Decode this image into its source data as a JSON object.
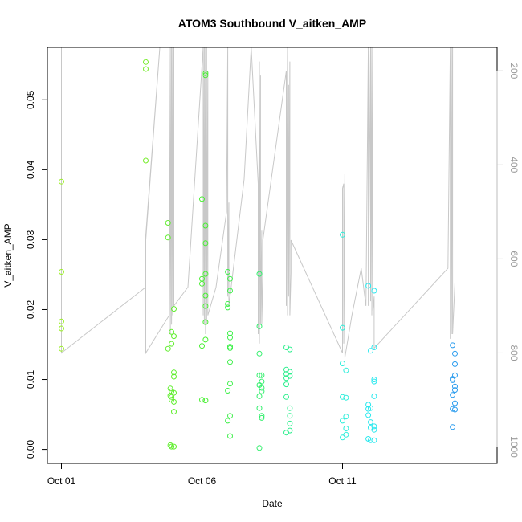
{
  "chart_data": {
    "type": "scatter",
    "title": "ATOM3 Southbound V_aitken_AMP",
    "xlabel": "Date",
    "ylabel": "V_aitken_AMP",
    "x_axis": {
      "type": "date",
      "range": [
        "2016-09-30T12:00",
        "2016-10-16T12:00"
      ],
      "ticks": [
        "2016-10-01",
        "2016-10-06",
        "2016-10-11"
      ],
      "tick_labels": [
        "Oct 01",
        "Oct 06",
        "Oct 11"
      ]
    },
    "y_axis": {
      "range": [
        -0.002,
        0.0575
      ],
      "ticks": [
        0.0,
        0.01,
        0.02,
        0.03,
        0.04,
        0.05
      ],
      "tick_labels": [
        "0.00",
        "0.01",
        "0.02",
        "0.03",
        "0.04",
        "0.05"
      ]
    },
    "y2_axis": {
      "reversed": true,
      "range": [
        1035,
        150
      ],
      "ticks": [
        200,
        400,
        600,
        800,
        1000
      ],
      "tick_labels": [
        "200",
        "400",
        "600",
        "800",
        "1000"
      ],
      "color": "#bebebe"
    },
    "points": [
      {
        "x": "2016-10-01T00:00",
        "y": 0.0383,
        "color": "#9cf02a"
      },
      {
        "x": "2016-10-01T00:00",
        "y": 0.0254,
        "color": "#9cf02a"
      },
      {
        "x": "2016-10-01T00:00",
        "y": 0.0183,
        "color": "#9cf02a"
      },
      {
        "x": "2016-10-01T00:00",
        "y": 0.0173,
        "color": "#9cf02a"
      },
      {
        "x": "2016-10-01T00:00",
        "y": 0.0144,
        "color": "#9cf02a"
      },
      {
        "x": "2016-10-04T00:00",
        "y": 0.0554,
        "color": "#76ec2a"
      },
      {
        "x": "2016-10-04T00:00",
        "y": 0.0544,
        "color": "#76ec2a"
      },
      {
        "x": "2016-10-04T00:00",
        "y": 0.0413,
        "color": "#76ec2a"
      },
      {
        "x": "2016-10-04T19:00",
        "y": 0.0324,
        "color": "#60ee2e"
      },
      {
        "x": "2016-10-04T19:00",
        "y": 0.0303,
        "color": "#60ee2e"
      },
      {
        "x": "2016-10-04T19:00",
        "y": 0.0144,
        "color": "#60ee2e"
      },
      {
        "x": "2016-10-04T21:00",
        "y": 0.0087,
        "color": "#60ee2e"
      },
      {
        "x": "2016-10-04T21:00",
        "y": 0.0077,
        "color": "#60ee2e"
      },
      {
        "x": "2016-10-04T21:00",
        "y": 0.0006,
        "color": "#60ee2e"
      },
      {
        "x": "2016-10-04T22:00",
        "y": 0.0168,
        "color": "#60ee2e"
      },
      {
        "x": "2016-10-04T22:00",
        "y": 0.0151,
        "color": "#60ee2e"
      },
      {
        "x": "2016-10-04T22:00",
        "y": 0.0083,
        "color": "#60ee2e"
      },
      {
        "x": "2016-10-04T22:00",
        "y": 0.0075,
        "color": "#60ee2e"
      },
      {
        "x": "2016-10-04T22:00",
        "y": 0.0071,
        "color": "#60ee2e"
      },
      {
        "x": "2016-10-04T22:00",
        "y": 0.0004,
        "color": "#60ee2e"
      },
      {
        "x": "2016-10-05T00:00",
        "y": 0.0201,
        "color": "#60ee2e"
      },
      {
        "x": "2016-10-05T00:00",
        "y": 0.0162,
        "color": "#60ee2e"
      },
      {
        "x": "2016-10-05T00:00",
        "y": 0.011,
        "color": "#60ee2e"
      },
      {
        "x": "2016-10-05T00:00",
        "y": 0.0104,
        "color": "#60ee2e"
      },
      {
        "x": "2016-10-05T00:00",
        "y": 0.0081,
        "color": "#60ee2e"
      },
      {
        "x": "2016-10-05T00:00",
        "y": 0.0068,
        "color": "#60ee2e"
      },
      {
        "x": "2016-10-05T00:00",
        "y": 0.0054,
        "color": "#60ee2e"
      },
      {
        "x": "2016-10-05T00:00",
        "y": 0.0004,
        "color": "#60ee2e"
      },
      {
        "x": "2016-10-06T00:00",
        "y": 0.0358,
        "color": "#48ef32"
      },
      {
        "x": "2016-10-06T00:00",
        "y": 0.0244,
        "color": "#48ef32"
      },
      {
        "x": "2016-10-06T00:00",
        "y": 0.0237,
        "color": "#48ef32"
      },
      {
        "x": "2016-10-06T00:00",
        "y": 0.0148,
        "color": "#48ef32"
      },
      {
        "x": "2016-10-06T00:00",
        "y": 0.0071,
        "color": "#48ef32"
      },
      {
        "x": "2016-10-06T03:00",
        "y": 0.0538,
        "color": "#48ef32"
      },
      {
        "x": "2016-10-06T03:00",
        "y": 0.0535,
        "color": "#48ef32"
      },
      {
        "x": "2016-10-06T03:00",
        "y": 0.032,
        "color": "#48ef32"
      },
      {
        "x": "2016-10-06T03:00",
        "y": 0.0295,
        "color": "#48ef32"
      },
      {
        "x": "2016-10-06T03:00",
        "y": 0.0251,
        "color": "#48ef32"
      },
      {
        "x": "2016-10-06T03:00",
        "y": 0.022,
        "color": "#48ef32"
      },
      {
        "x": "2016-10-06T03:00",
        "y": 0.0205,
        "color": "#48ef32"
      },
      {
        "x": "2016-10-06T03:00",
        "y": 0.0182,
        "color": "#48ef32"
      },
      {
        "x": "2016-10-06T03:00",
        "y": 0.0157,
        "color": "#48ef32"
      },
      {
        "x": "2016-10-06T03:00",
        "y": 0.007,
        "color": "#48ef32"
      },
      {
        "x": "2016-10-06T22:00",
        "y": 0.0254,
        "color": "#3ef04a"
      },
      {
        "x": "2016-10-06T22:00",
        "y": 0.0208,
        "color": "#3ef04a"
      },
      {
        "x": "2016-10-06T22:00",
        "y": 0.0203,
        "color": "#3ef04a"
      },
      {
        "x": "2016-10-06T22:00",
        "y": 0.0084,
        "color": "#3ef04a"
      },
      {
        "x": "2016-10-06T22:00",
        "y": 0.0041,
        "color": "#3ef04a"
      },
      {
        "x": "2016-10-07T00:00",
        "y": 0.0244,
        "color": "#3ef04a"
      },
      {
        "x": "2016-10-07T00:00",
        "y": 0.0227,
        "color": "#3ef04a"
      },
      {
        "x": "2016-10-07T00:00",
        "y": 0.0166,
        "color": "#3ef04a"
      },
      {
        "x": "2016-10-07T00:00",
        "y": 0.016,
        "color": "#3ef04a"
      },
      {
        "x": "2016-10-07T00:00",
        "y": 0.0147,
        "color": "#3ef04a"
      },
      {
        "x": "2016-10-07T00:00",
        "y": 0.0145,
        "color": "#3ef04a"
      },
      {
        "x": "2016-10-07T00:00",
        "y": 0.0125,
        "color": "#3ef04a"
      },
      {
        "x": "2016-10-07T00:00",
        "y": 0.0094,
        "color": "#3ef04a"
      },
      {
        "x": "2016-10-07T00:00",
        "y": 0.0048,
        "color": "#3ef04a"
      },
      {
        "x": "2016-10-07T00:00",
        "y": 0.0019,
        "color": "#3ef04a"
      },
      {
        "x": "2016-10-08T01:00",
        "y": 0.0251,
        "color": "#32ef6c"
      },
      {
        "x": "2016-10-08T01:00",
        "y": 0.0176,
        "color": "#32ef6c"
      },
      {
        "x": "2016-10-08T01:00",
        "y": 0.0137,
        "color": "#32ef6c"
      },
      {
        "x": "2016-10-08T01:00",
        "y": 0.0106,
        "color": "#32ef6c"
      },
      {
        "x": "2016-10-08T01:00",
        "y": 0.0092,
        "color": "#32ef6c"
      },
      {
        "x": "2016-10-08T01:00",
        "y": 0.0076,
        "color": "#32ef6c"
      },
      {
        "x": "2016-10-08T01:00",
        "y": 0.0059,
        "color": "#32ef6c"
      },
      {
        "x": "2016-10-08T01:00",
        "y": 0.0002,
        "color": "#32ef6c"
      },
      {
        "x": "2016-10-08T03:00",
        "y": 0.0106,
        "color": "#32ef6c"
      },
      {
        "x": "2016-10-08T03:00",
        "y": 0.0097,
        "color": "#32ef6c"
      },
      {
        "x": "2016-10-08T03:00",
        "y": 0.0088,
        "color": "#32ef6c"
      },
      {
        "x": "2016-10-08T03:00",
        "y": 0.0083,
        "color": "#32ef6c"
      },
      {
        "x": "2016-10-08T03:00",
        "y": 0.0048,
        "color": "#32ef6c"
      },
      {
        "x": "2016-10-08T03:00",
        "y": 0.0045,
        "color": "#32ef6c"
      },
      {
        "x": "2016-10-09T00:00",
        "y": 0.0146,
        "color": "#2eef8e"
      },
      {
        "x": "2016-10-09T00:00",
        "y": 0.0114,
        "color": "#2eef8e"
      },
      {
        "x": "2016-10-09T00:00",
        "y": 0.0108,
        "color": "#2eef8e"
      },
      {
        "x": "2016-10-09T00:00",
        "y": 0.0102,
        "color": "#2eef8e"
      },
      {
        "x": "2016-10-09T00:00",
        "y": 0.0093,
        "color": "#2eef8e"
      },
      {
        "x": "2016-10-09T00:00",
        "y": 0.0075,
        "color": "#2eef8e"
      },
      {
        "x": "2016-10-09T00:00",
        "y": 0.0024,
        "color": "#2eef8e"
      },
      {
        "x": "2016-10-09T03:00",
        "y": 0.0143,
        "color": "#2eef8e"
      },
      {
        "x": "2016-10-09T03:00",
        "y": 0.0111,
        "color": "#2eef8e"
      },
      {
        "x": "2016-10-09T03:00",
        "y": 0.0105,
        "color": "#2eef8e"
      },
      {
        "x": "2016-10-09T03:00",
        "y": 0.0059,
        "color": "#2eef8e"
      },
      {
        "x": "2016-10-09T03:00",
        "y": 0.0048,
        "color": "#2eef8e"
      },
      {
        "x": "2016-10-09T03:00",
        "y": 0.0037,
        "color": "#2eef8e"
      },
      {
        "x": "2016-10-09T03:00",
        "y": 0.0027,
        "color": "#2eef8e"
      },
      {
        "x": "2016-10-11T00:00",
        "y": 0.0307,
        "color": "#2aeeda"
      },
      {
        "x": "2016-10-11T00:00",
        "y": 0.0174,
        "color": "#2aeeda"
      },
      {
        "x": "2016-10-11T00:00",
        "y": 0.0123,
        "color": "#2aeeda"
      },
      {
        "x": "2016-10-11T00:00",
        "y": 0.0075,
        "color": "#2aeeda"
      },
      {
        "x": "2016-10-11T00:00",
        "y": 0.0041,
        "color": "#2aeeda"
      },
      {
        "x": "2016-10-11T00:00",
        "y": 0.0017,
        "color": "#2aeeda"
      },
      {
        "x": "2016-10-11T03:00",
        "y": 0.0113,
        "color": "#2aeeda"
      },
      {
        "x": "2016-10-11T03:00",
        "y": 0.0074,
        "color": "#2aeeda"
      },
      {
        "x": "2016-10-11T03:00",
        "y": 0.0047,
        "color": "#2aeeda"
      },
      {
        "x": "2016-10-11T03:00",
        "y": 0.003,
        "color": "#2aeeda"
      },
      {
        "x": "2016-10-11T03:00",
        "y": 0.0021,
        "color": "#2aeeda"
      },
      {
        "x": "2016-10-11T22:00",
        "y": 0.0234,
        "color": "#2ae8ee"
      },
      {
        "x": "2016-10-11T22:00",
        "y": 0.0064,
        "color": "#2ae8ee"
      },
      {
        "x": "2016-10-11T22:00",
        "y": 0.0058,
        "color": "#2ae8ee"
      },
      {
        "x": "2016-10-11T22:00",
        "y": 0.0049,
        "color": "#2ae8ee"
      },
      {
        "x": "2016-10-11T22:00",
        "y": 0.0015,
        "color": "#2ae8ee"
      },
      {
        "x": "2016-10-12T00:00",
        "y": 0.0141,
        "color": "#2ae8ee"
      },
      {
        "x": "2016-10-12T00:00",
        "y": 0.0059,
        "color": "#2ae8ee"
      },
      {
        "x": "2016-10-12T00:00",
        "y": 0.0039,
        "color": "#2ae8ee"
      },
      {
        "x": "2016-10-12T00:00",
        "y": 0.0031,
        "color": "#2ae8ee"
      },
      {
        "x": "2016-10-12T00:00",
        "y": 0.0013,
        "color": "#2ae8ee"
      },
      {
        "x": "2016-10-12T03:00",
        "y": 0.0227,
        "color": "#2ae8ee"
      },
      {
        "x": "2016-10-12T03:00",
        "y": 0.0146,
        "color": "#2ae8ee"
      },
      {
        "x": "2016-10-12T03:00",
        "y": 0.01,
        "color": "#2ae8ee"
      },
      {
        "x": "2016-10-12T03:00",
        "y": 0.0097,
        "color": "#2ae8ee"
      },
      {
        "x": "2016-10-12T03:00",
        "y": 0.0076,
        "color": "#2ae8ee"
      },
      {
        "x": "2016-10-12T03:00",
        "y": 0.0033,
        "color": "#2ae8ee"
      },
      {
        "x": "2016-10-12T03:00",
        "y": 0.0028,
        "color": "#2ae8ee"
      },
      {
        "x": "2016-10-12T03:00",
        "y": 0.0013,
        "color": "#2ae8ee"
      },
      {
        "x": "2016-10-14T22:00",
        "y": 0.0149,
        "color": "#2a9cee"
      },
      {
        "x": "2016-10-14T22:00",
        "y": 0.0101,
        "color": "#2a9cee"
      },
      {
        "x": "2016-10-14T22:00",
        "y": 0.0099,
        "color": "#2a9cee"
      },
      {
        "x": "2016-10-14T22:00",
        "y": 0.0078,
        "color": "#2a9cee"
      },
      {
        "x": "2016-10-14T22:00",
        "y": 0.0058,
        "color": "#2a9cee"
      },
      {
        "x": "2016-10-14T22:00",
        "y": 0.0032,
        "color": "#2a9cee"
      },
      {
        "x": "2016-10-15T00:00",
        "y": 0.0137,
        "color": "#2a9cee"
      },
      {
        "x": "2016-10-15T00:00",
        "y": 0.0122,
        "color": "#2a9cee"
      },
      {
        "x": "2016-10-15T00:00",
        "y": 0.0106,
        "color": "#2a9cee"
      },
      {
        "x": "2016-10-15T00:00",
        "y": 0.009,
        "color": "#2a9cee"
      },
      {
        "x": "2016-10-15T00:00",
        "y": 0.0085,
        "color": "#2a9cee"
      },
      {
        "x": "2016-10-15T00:00",
        "y": 0.0066,
        "color": "#2a9cee"
      },
      {
        "x": "2016-10-15T00:00",
        "y": 0.0057,
        "color": "#2a9cee"
      }
    ],
    "trace": {
      "color": "#c8c8c8",
      "y_axis": "y2",
      "points": [
        [
          "2016-10-01T00:00",
          150
        ],
        [
          "2016-10-01T00:00",
          800
        ],
        [
          "2016-10-04T00:00",
          660
        ],
        [
          "2016-10-04T00:00",
          550
        ],
        [
          "2016-10-04T12:00",
          150
        ],
        [
          "2016-10-04T12:00",
          150
        ],
        [
          "2016-10-04T00:00",
          560
        ],
        [
          "2016-10-04T00:00",
          800
        ],
        [
          "2016-10-04T20:00",
          720
        ],
        [
          "2016-10-04T21:00",
          150
        ],
        [
          "2016-10-04T21:00",
          760
        ],
        [
          "2016-10-04T22:00",
          150
        ],
        [
          "2016-10-04T22:00",
          740
        ],
        [
          "2016-10-04T23:00",
          150
        ],
        [
          "2016-10-04T23:00",
          720
        ],
        [
          "2016-10-05T00:00",
          150
        ],
        [
          "2016-10-05T00:00",
          700
        ],
        [
          "2016-10-05T12:00",
          660
        ],
        [
          "2016-10-06T01:00",
          150
        ],
        [
          "2016-10-06T01:00",
          720
        ],
        [
          "2016-10-06T02:00",
          150
        ],
        [
          "2016-10-06T02:00",
          740
        ],
        [
          "2016-10-06T03:00",
          150
        ],
        [
          "2016-10-06T03:00",
          760
        ],
        [
          "2016-10-06T04:00",
          150
        ],
        [
          "2016-10-06T04:00",
          740
        ],
        [
          "2016-10-06T05:00",
          200
        ],
        [
          "2016-10-06T05:00",
          720
        ],
        [
          "2016-10-06T12:00",
          660
        ],
        [
          "2016-10-06T21:00",
          500
        ],
        [
          "2016-10-06T22:00",
          150
        ],
        [
          "2016-10-06T22:00",
          680
        ],
        [
          "2016-10-06T23:00",
          480
        ],
        [
          "2016-10-06T23:00",
          700
        ],
        [
          "2016-10-07T12:00",
          430
        ],
        [
          "2016-10-07T18:00",
          150
        ],
        [
          "2016-10-08T00:00",
          440
        ],
        [
          "2016-10-08T00:00",
          760
        ],
        [
          "2016-10-08T01:00",
          180
        ],
        [
          "2016-10-08T01:00",
          780
        ],
        [
          "2016-10-08T02:00",
          210
        ],
        [
          "2016-10-08T02:00",
          740
        ],
        [
          "2016-10-08T03:00",
          540
        ],
        [
          "2016-10-08T03:00",
          740
        ],
        [
          "2016-10-08T04:00",
          640
        ],
        [
          "2016-10-08T04:00",
          560
        ],
        [
          "2016-10-09T00:00",
          200
        ],
        [
          "2016-10-09T00:00",
          700
        ],
        [
          "2016-10-09T01:00",
          150
        ],
        [
          "2016-10-09T01:00",
          720
        ],
        [
          "2016-10-09T02:00",
          230
        ],
        [
          "2016-10-09T02:00",
          680
        ],
        [
          "2016-10-09T03:00",
          180
        ],
        [
          "2016-10-09T03:00",
          720
        ],
        [
          "2016-10-09T04:00",
          630
        ],
        [
          "2016-10-09T04:00",
          560
        ],
        [
          "2016-10-11T00:00",
          800
        ],
        [
          "2016-10-11T00:00",
          450
        ],
        [
          "2016-10-11T01:00",
          440
        ],
        [
          "2016-10-11T01:00",
          780
        ],
        [
          "2016-10-11T02:00",
          420
        ],
        [
          "2016-10-11T02:00",
          810
        ],
        [
          "2016-10-11T08:00",
          720
        ],
        [
          "2016-10-11T16:00",
          620
        ],
        [
          "2016-10-11T20:00",
          700
        ],
        [
          "2016-10-11T22:00",
          150
        ],
        [
          "2016-10-11T22:00",
          700
        ],
        [
          "2016-10-12T00:00",
          150
        ],
        [
          "2016-10-12T00:00",
          690
        ],
        [
          "2016-10-12T01:00",
          150
        ],
        [
          "2016-10-12T01:00",
          720
        ],
        [
          "2016-10-12T02:00",
          150
        ],
        [
          "2016-10-12T02:00",
          710
        ],
        [
          "2016-10-12T03:00",
          680
        ],
        [
          "2016-10-12T03:00",
          790
        ],
        [
          "2016-10-14T18:00",
          620
        ],
        [
          "2016-10-14T20:00",
          150
        ],
        [
          "2016-10-14T20:00",
          770
        ],
        [
          "2016-10-14T21:00",
          150
        ],
        [
          "2016-10-14T21:00",
          760
        ],
        [
          "2016-10-14T22:00",
          150
        ],
        [
          "2016-10-14T22:00",
          760
        ],
        [
          "2016-10-15T00:00",
          650
        ],
        [
          "2016-10-15T00:00",
          760
        ]
      ]
    },
    "grid": false,
    "legend": "none"
  }
}
